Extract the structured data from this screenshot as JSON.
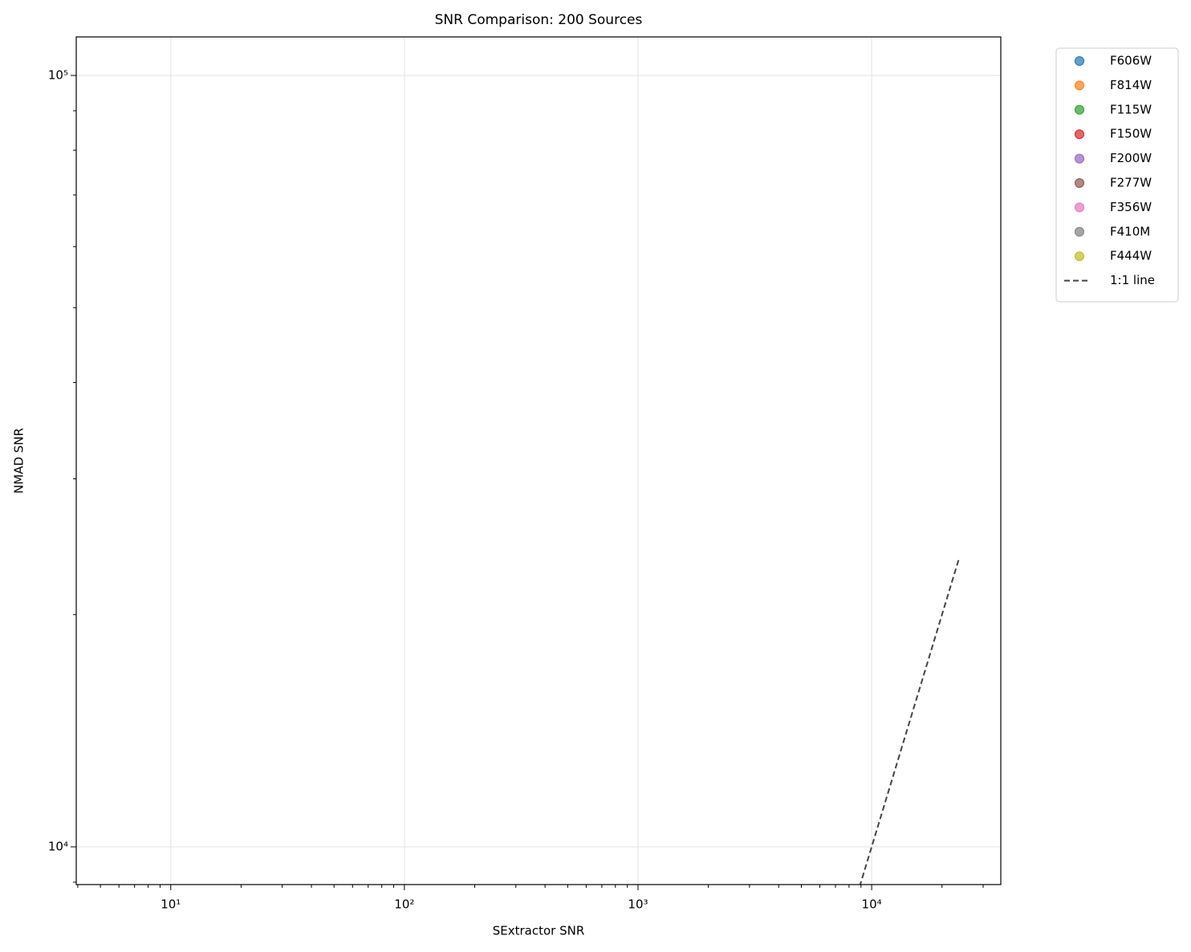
{
  "chart_data": {
    "type": "scatter",
    "title": "SNR Comparison: 200 Sources",
    "xlabel": "SExtractor SNR",
    "ylabel": "NMAD SNR",
    "xscale": "log",
    "yscale": "log",
    "xlim": [
      3.94,
      35700
    ],
    "ylim": [
      8935,
      112200
    ],
    "xticks": [
      {
        "value": 10,
        "label": "10¹"
      },
      {
        "value": 100,
        "label": "10²"
      },
      {
        "value": 1000,
        "label": "10³"
      },
      {
        "value": 10000,
        "label": "10⁴"
      }
    ],
    "yticks": [
      {
        "value": 10000,
        "label": "10⁴"
      },
      {
        "value": 100000,
        "label": "10⁵"
      }
    ],
    "xminor_ticks": [
      4,
      5,
      6,
      7,
      8,
      9,
      20,
      30,
      40,
      50,
      60,
      70,
      80,
      90,
      200,
      300,
      400,
      500,
      600,
      700,
      800,
      900,
      2000,
      3000,
      4000,
      5000,
      6000,
      7000,
      8000,
      9000,
      20000,
      30000
    ],
    "yminor_ticks": [
      9000,
      20000,
      30000,
      40000,
      50000,
      60000,
      70000,
      80000,
      90000
    ],
    "grid": true,
    "legend": "outside upper right",
    "series": [
      {
        "name": "F606W",
        "color": "#1f77b4",
        "x": [],
        "values": []
      },
      {
        "name": "F814W",
        "color": "#ff7f0e",
        "x": [],
        "values": []
      },
      {
        "name": "F115W",
        "color": "#2ca02c",
        "x": [],
        "values": []
      },
      {
        "name": "F150W",
        "color": "#d62728",
        "x": [],
        "values": []
      },
      {
        "name": "F200W",
        "color": "#9467bd",
        "x": [],
        "values": []
      },
      {
        "name": "F277W",
        "color": "#8c564b",
        "x": [],
        "values": []
      },
      {
        "name": "F356W",
        "color": "#e377c2",
        "x": [],
        "values": []
      },
      {
        "name": "F410M",
        "color": "#7f7f7f",
        "x": [],
        "values": []
      },
      {
        "name": "F444W",
        "color": "#bcbd22",
        "x": [],
        "values": []
      },
      {
        "name": "1:1 line",
        "color": "#444444",
        "style": "dashed",
        "x": [
          8880,
          23700
        ],
        "values": [
          8880,
          23700
        ]
      }
    ]
  }
}
